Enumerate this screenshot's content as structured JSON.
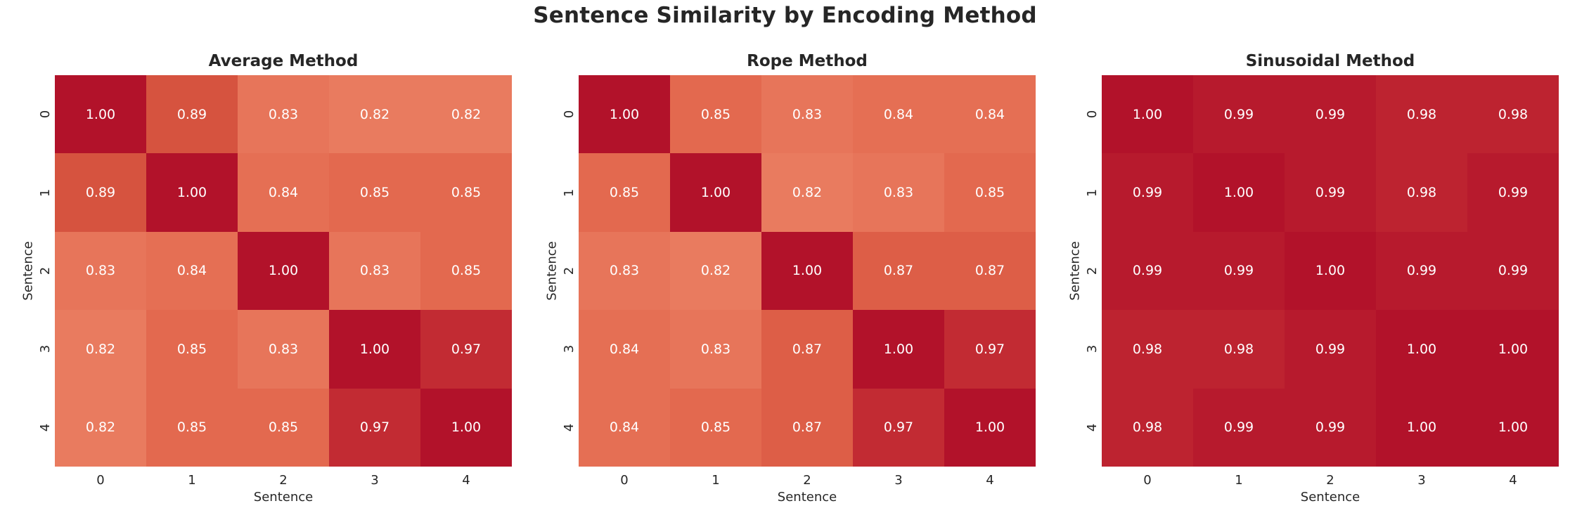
{
  "figure": {
    "title": "Sentence Similarity by Encoding Method",
    "background_color": "#ffffff",
    "text_color": "#262626"
  },
  "colormap": {
    "type": "sequential-red",
    "colorbar": false,
    "annotation_text_color": "#ffffff",
    "anchors": [
      {
        "value": 0.82,
        "color": "#e97b5f"
      },
      {
        "value": 0.85,
        "color": "#e3694f"
      },
      {
        "value": 0.89,
        "color": "#d6533f"
      },
      {
        "value": 0.97,
        "color": "#c22b33"
      },
      {
        "value": 1.0,
        "color": "#b2122a"
      }
    ]
  },
  "chart_data": [
    {
      "type": "heatmap",
      "title": "Average Method",
      "xlabel": "Sentence",
      "ylabel": "Sentence",
      "x_ticks": [
        "0",
        "1",
        "2",
        "3",
        "4"
      ],
      "y_ticks": [
        "0",
        "1",
        "2",
        "3",
        "4"
      ],
      "value_range": [
        0.82,
        1.0
      ],
      "values": [
        [
          1.0,
          0.89,
          0.83,
          0.82,
          0.82
        ],
        [
          0.89,
          1.0,
          0.84,
          0.85,
          0.85
        ],
        [
          0.83,
          0.84,
          1.0,
          0.83,
          0.85
        ],
        [
          0.82,
          0.85,
          0.83,
          1.0,
          0.97
        ],
        [
          0.82,
          0.85,
          0.85,
          0.97,
          1.0
        ]
      ]
    },
    {
      "type": "heatmap",
      "title": "Rope Method",
      "xlabel": "Sentence",
      "ylabel": "Sentence",
      "x_ticks": [
        "0",
        "1",
        "2",
        "3",
        "4"
      ],
      "y_ticks": [
        "0",
        "1",
        "2",
        "3",
        "4"
      ],
      "value_range": [
        0.82,
        1.0
      ],
      "values": [
        [
          1.0,
          0.85,
          0.83,
          0.84,
          0.84
        ],
        [
          0.85,
          1.0,
          0.82,
          0.83,
          0.85
        ],
        [
          0.83,
          0.82,
          1.0,
          0.87,
          0.87
        ],
        [
          0.84,
          0.83,
          0.87,
          1.0,
          0.97
        ],
        [
          0.84,
          0.85,
          0.87,
          0.97,
          1.0
        ]
      ]
    },
    {
      "type": "heatmap",
      "title": "Sinusoidal Method",
      "xlabel": "Sentence",
      "ylabel": "Sentence",
      "x_ticks": [
        "0",
        "1",
        "2",
        "3",
        "4"
      ],
      "y_ticks": [
        "0",
        "1",
        "2",
        "3",
        "4"
      ],
      "value_range": [
        0.82,
        1.0
      ],
      "values": [
        [
          1.0,
          0.99,
          0.99,
          0.98,
          0.98
        ],
        [
          0.99,
          1.0,
          0.99,
          0.98,
          0.99
        ],
        [
          0.99,
          0.99,
          1.0,
          0.99,
          0.99
        ],
        [
          0.98,
          0.98,
          0.99,
          1.0,
          1.0
        ],
        [
          0.98,
          0.99,
          0.99,
          1.0,
          1.0
        ]
      ]
    }
  ]
}
